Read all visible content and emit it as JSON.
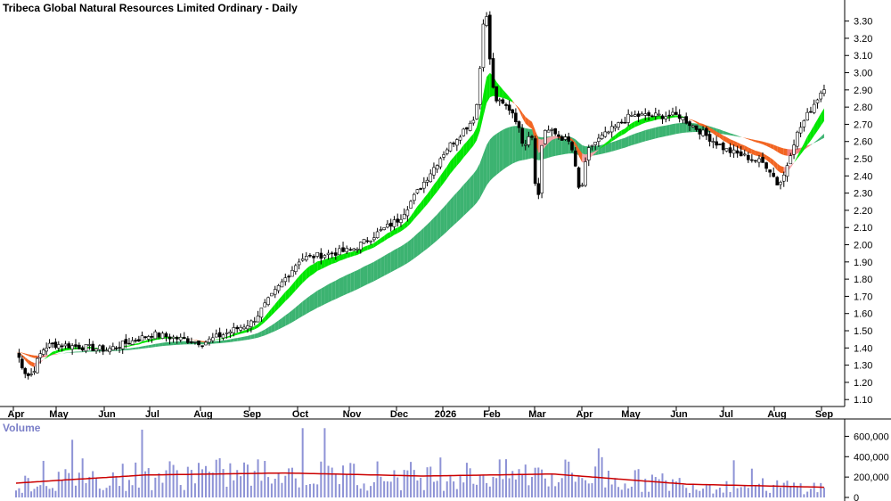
{
  "chart_data": [
    {
      "type": "candlestick",
      "title": "Tribeca Global Natural Resources Limited Ordinary - Daily",
      "y_ticks": [
        "3.30",
        "3.20",
        "3.10",
        "3.00",
        "2.90",
        "2.80",
        "2.70",
        "2.60",
        "2.50",
        "2.40",
        "2.30",
        "2.20",
        "2.10",
        "2.00",
        "1.90",
        "1.80",
        "1.70",
        "1.60",
        "1.50",
        "1.40",
        "1.30",
        "1.20",
        "1.10"
      ],
      "ylim": [
        1.07,
        3.35
      ],
      "x_ticks": [
        "Apr",
        "May",
        "Jun",
        "Jul",
        "Aug",
        "Sep",
        "Oct",
        "Nov",
        "Dec",
        "2026",
        "Feb",
        "Mar",
        "Apr",
        "May",
        "Jun",
        "Jul",
        "Aug",
        "Sep"
      ],
      "approx_close_by_month": [
        {
          "month": "Apr",
          "close": 1.42
        },
        {
          "month": "May",
          "close": 1.42
        },
        {
          "month": "Jun",
          "close": 1.39
        },
        {
          "month": "Jul",
          "close": 1.48
        },
        {
          "month": "Aug",
          "close": 1.43
        },
        {
          "month": "Sep",
          "close": 1.55
        },
        {
          "month": "Oct",
          "close": 1.92
        },
        {
          "month": "Nov",
          "close": 1.97
        },
        {
          "month": "Dec",
          "close": 2.15
        },
        {
          "month": "2026",
          "close": 2.55
        },
        {
          "month": "Feb",
          "close": 2.85
        },
        {
          "month": "Mar",
          "close": 2.7
        },
        {
          "month": "Apr",
          "close": 2.55
        },
        {
          "month": "May",
          "close": 2.75
        },
        {
          "month": "Jun",
          "close": 2.75
        },
        {
          "month": "Jul",
          "close": 2.55
        },
        {
          "month": "Aug",
          "close": 2.45
        },
        {
          "month": "Sep",
          "close": 2.92
        }
      ],
      "overlays": [
        {
          "kind": "short-term moving average ribbon",
          "colors": {
            "rising": "#00e600",
            "falling": "#f26522",
            "weak": "#f4a3a8"
          }
        },
        {
          "kind": "long-term moving average ribbon",
          "colors": {
            "rising": "#3cb371",
            "falling": "#f26522",
            "weak": "#f08080"
          }
        }
      ],
      "grid": false,
      "y_axis_side": "right"
    },
    {
      "type": "bar",
      "title": "Volume",
      "y_ticks": [
        "600,000",
        "400,000",
        "200,000",
        "0"
      ],
      "ylim": [
        0,
        700000
      ],
      "bar_color": "#8e93d6",
      "average_line_color": "#cc0000",
      "average_approx": [
        {
          "month": "Apr",
          "value": 140000
        },
        {
          "month": "Oct",
          "value": 220000
        },
        {
          "month": "Dec",
          "value": 240000
        },
        {
          "month": "Feb",
          "value": 210000
        },
        {
          "month": "Apr",
          "value": 230000
        },
        {
          "month": "Jul",
          "value": 130000
        },
        {
          "month": "Sep",
          "value": 100000
        }
      ]
    }
  ]
}
